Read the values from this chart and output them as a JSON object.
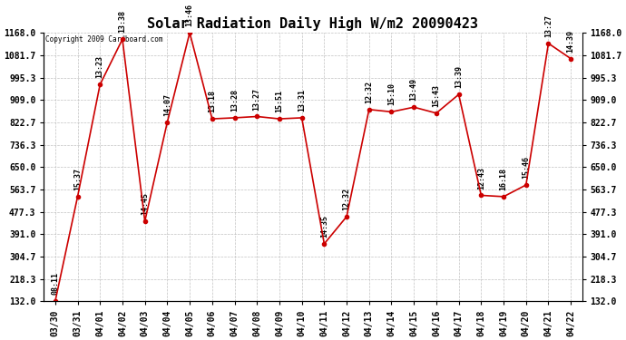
{
  "title": "Solar Radiation Daily High W/m2 20090423",
  "copyright": "Copyright 2009 Cardboard.com",
  "dates": [
    "03/30",
    "03/31",
    "04/01",
    "04/02",
    "04/03",
    "04/04",
    "04/05",
    "04/06",
    "04/07",
    "04/08",
    "04/09",
    "04/10",
    "04/11",
    "04/12",
    "04/13",
    "04/14",
    "04/15",
    "04/16",
    "04/17",
    "04/18",
    "04/19",
    "04/20",
    "04/21",
    "04/22"
  ],
  "values": [
    132.0,
    536.0,
    968.0,
    1143.0,
    441.0,
    822.7,
    1168.0,
    836.0,
    840.0,
    845.0,
    836.0,
    840.0,
    354.0,
    459.0,
    872.0,
    863.0,
    881.0,
    858.0,
    930.0,
    541.0,
    536.0,
    581.0,
    1127.0,
    1068.0
  ],
  "time_labels": [
    "08:11",
    "15:37",
    "13:23",
    "13:38",
    "14:45",
    "14:07",
    "13:46",
    "13:18",
    "13:28",
    "13:27",
    "15:51",
    "13:31",
    "14:35",
    "12:32",
    "12:32",
    "15:10",
    "13:49",
    "15:43",
    "13:39",
    "12:43",
    "16:18",
    "15:46",
    "13:27",
    "14:39"
  ],
  "ylim": [
    132.0,
    1168.0
  ],
  "yticks": [
    132.0,
    218.3,
    304.7,
    391.0,
    477.3,
    563.7,
    650.0,
    736.3,
    822.7,
    909.0,
    995.3,
    1081.7,
    1168.0
  ],
  "line_color": "#cc0000",
  "marker_color": "#cc0000",
  "bg_color": "#ffffff",
  "grid_color": "#bbbbbb",
  "title_fontsize": 11,
  "tick_fontsize": 7,
  "annot_fontsize": 6
}
